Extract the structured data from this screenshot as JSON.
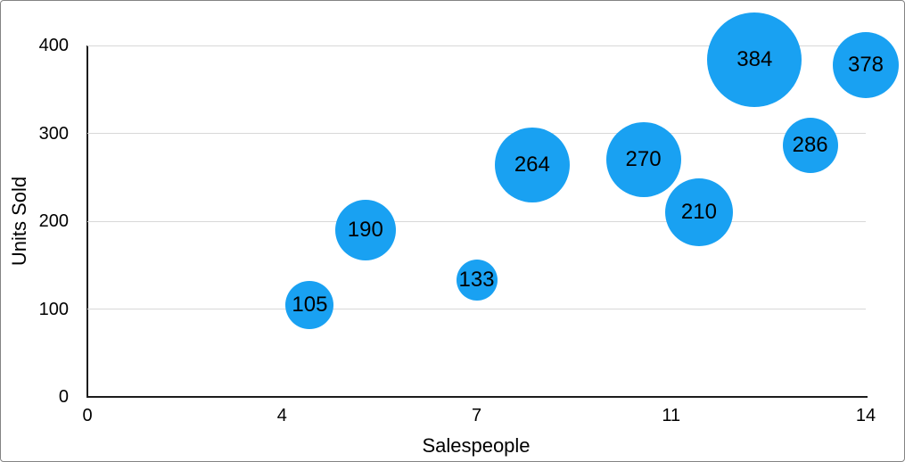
{
  "colors": {
    "bubble_fill": "#19A1F2",
    "grid_line": "#D8D8D8",
    "axis_line": "#1C1C1C",
    "label_text": "#000000",
    "frame_border": "#848484",
    "background": "#FFFFFF"
  },
  "chart_data": {
    "type": "scatter",
    "subtype": "bubble",
    "title": "",
    "xlabel": "Salespeople",
    "ylabel": "Units Sold",
    "x_axis": {
      "range": [
        0,
        14
      ],
      "tick_labels": [
        "0",
        "4",
        "7",
        "11",
        "14"
      ]
    },
    "y_axis": {
      "range": [
        0,
        400
      ],
      "tick_labels": [
        "0",
        "100",
        "200",
        "300",
        "400"
      ]
    },
    "grid": "horizontal-only",
    "legend": "none",
    "series": [
      {
        "name": "Units Sold",
        "points": [
          {
            "x": 4,
            "y": 105,
            "label": "105",
            "radius_px": 27
          },
          {
            "x": 5,
            "y": 190,
            "label": "190",
            "radius_px": 34
          },
          {
            "x": 7,
            "y": 133,
            "label": "133",
            "radius_px": 23
          },
          {
            "x": 8,
            "y": 264,
            "label": "264",
            "radius_px": 42
          },
          {
            "x": 10,
            "y": 270,
            "label": "270",
            "radius_px": 42
          },
          {
            "x": 11,
            "y": 210,
            "label": "210",
            "radius_px": 38
          },
          {
            "x": 12,
            "y": 384,
            "label": "384",
            "radius_px": 53
          },
          {
            "x": 13,
            "y": 286,
            "label": "286",
            "radius_px": 31
          },
          {
            "x": 14,
            "y": 378,
            "label": "378",
            "radius_px": 37
          }
        ]
      }
    ]
  }
}
